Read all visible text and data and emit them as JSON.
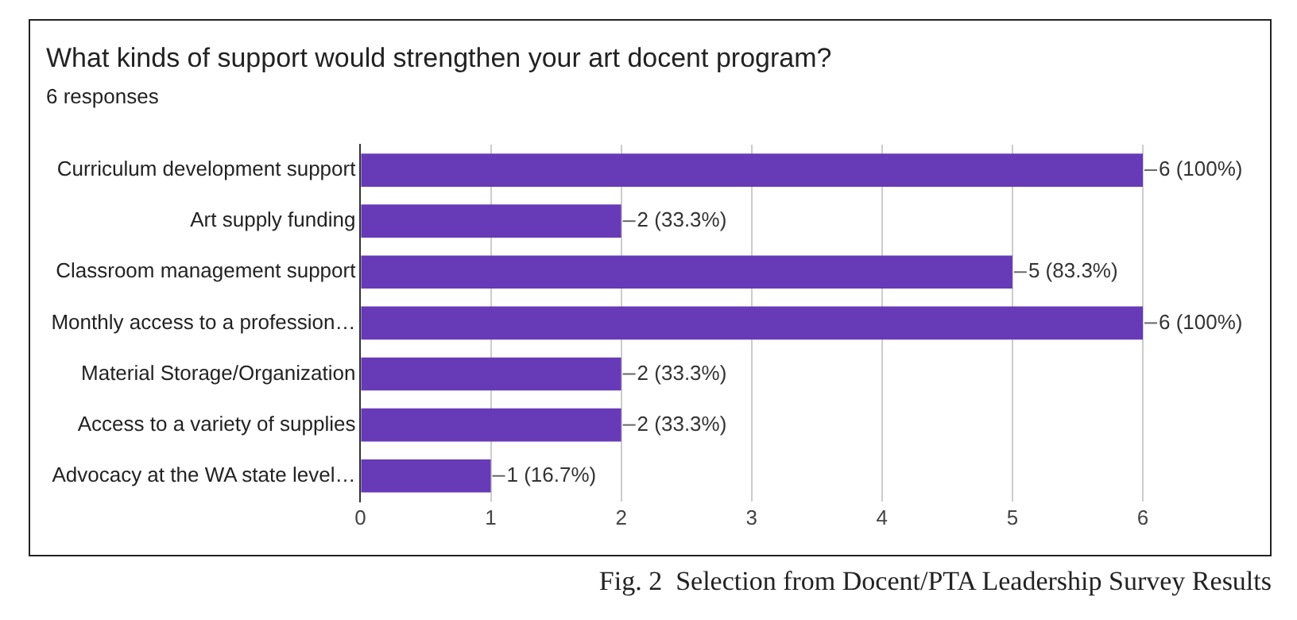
{
  "chart_data": {
    "type": "bar",
    "orientation": "horizontal",
    "title": "What kinds of support would strengthen your art docent program?",
    "subtitle": "6 responses",
    "categories": [
      "Curriculum development support",
      "Art supply funding",
      "Classroom management support",
      "Monthly access to a profession…",
      "Material Storage/Organization",
      "Access to a variety of supplies",
      "Advocacy at the WA state level…"
    ],
    "values": [
      6,
      2,
      5,
      6,
      2,
      2,
      1
    ],
    "value_labels": [
      "6 (100%)",
      "2 (33.3%)",
      "5 (83.3%)",
      "6 (100%)",
      "2 (33.3%)",
      "2 (33.3%)",
      "1 (16.7%)"
    ],
    "color": "#673ab7",
    "xlim": [
      0,
      6
    ],
    "xticks": [
      0,
      1,
      2,
      3,
      4,
      5,
      6
    ],
    "grid": "x",
    "legend": false,
    "annotations": [
      "Fig. 2  Selection from Docent/PTA Leadership Survey Results"
    ]
  }
}
